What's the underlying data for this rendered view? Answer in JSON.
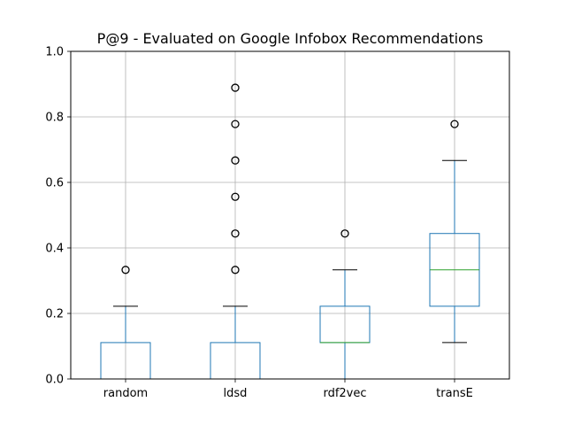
{
  "chart_data": {
    "type": "boxplot",
    "title": "P@9 - Evaluated on Google Infobox Recommendations",
    "xlabel": "",
    "ylabel": "",
    "ylim": [
      0.0,
      1.0
    ],
    "yticks": [
      "0.0",
      "0.2",
      "0.4",
      "0.6",
      "0.8",
      "1.0"
    ],
    "grid": true,
    "categories": [
      "random",
      "ldsd",
      "rdf2vec",
      "transE"
    ],
    "series": [
      {
        "category": "random",
        "whisker_low": 0.0,
        "q1": 0.0,
        "median": 0.0,
        "q3": 0.111,
        "whisker_high": 0.222,
        "outliers": [
          0.333
        ]
      },
      {
        "category": "ldsd",
        "whisker_low": 0.0,
        "q1": 0.0,
        "median": 0.0,
        "q3": 0.111,
        "whisker_high": 0.222,
        "outliers": [
          0.333,
          0.444,
          0.556,
          0.667,
          0.778,
          0.889
        ]
      },
      {
        "category": "rdf2vec",
        "whisker_low": 0.0,
        "q1": 0.111,
        "median": 0.111,
        "q3": 0.222,
        "whisker_high": 0.333,
        "outliers": [
          0.444
        ]
      },
      {
        "category": "transE",
        "whisker_low": 0.111,
        "q1": 0.222,
        "median": 0.333,
        "q3": 0.444,
        "whisker_high": 0.667,
        "outliers": [
          0.778
        ]
      }
    ],
    "colors": {
      "box": "#1f77b4",
      "median": "#2ca02c",
      "grid": "#b0b0b0",
      "whisker_cap": "#000000",
      "outlier": "#000000"
    }
  }
}
